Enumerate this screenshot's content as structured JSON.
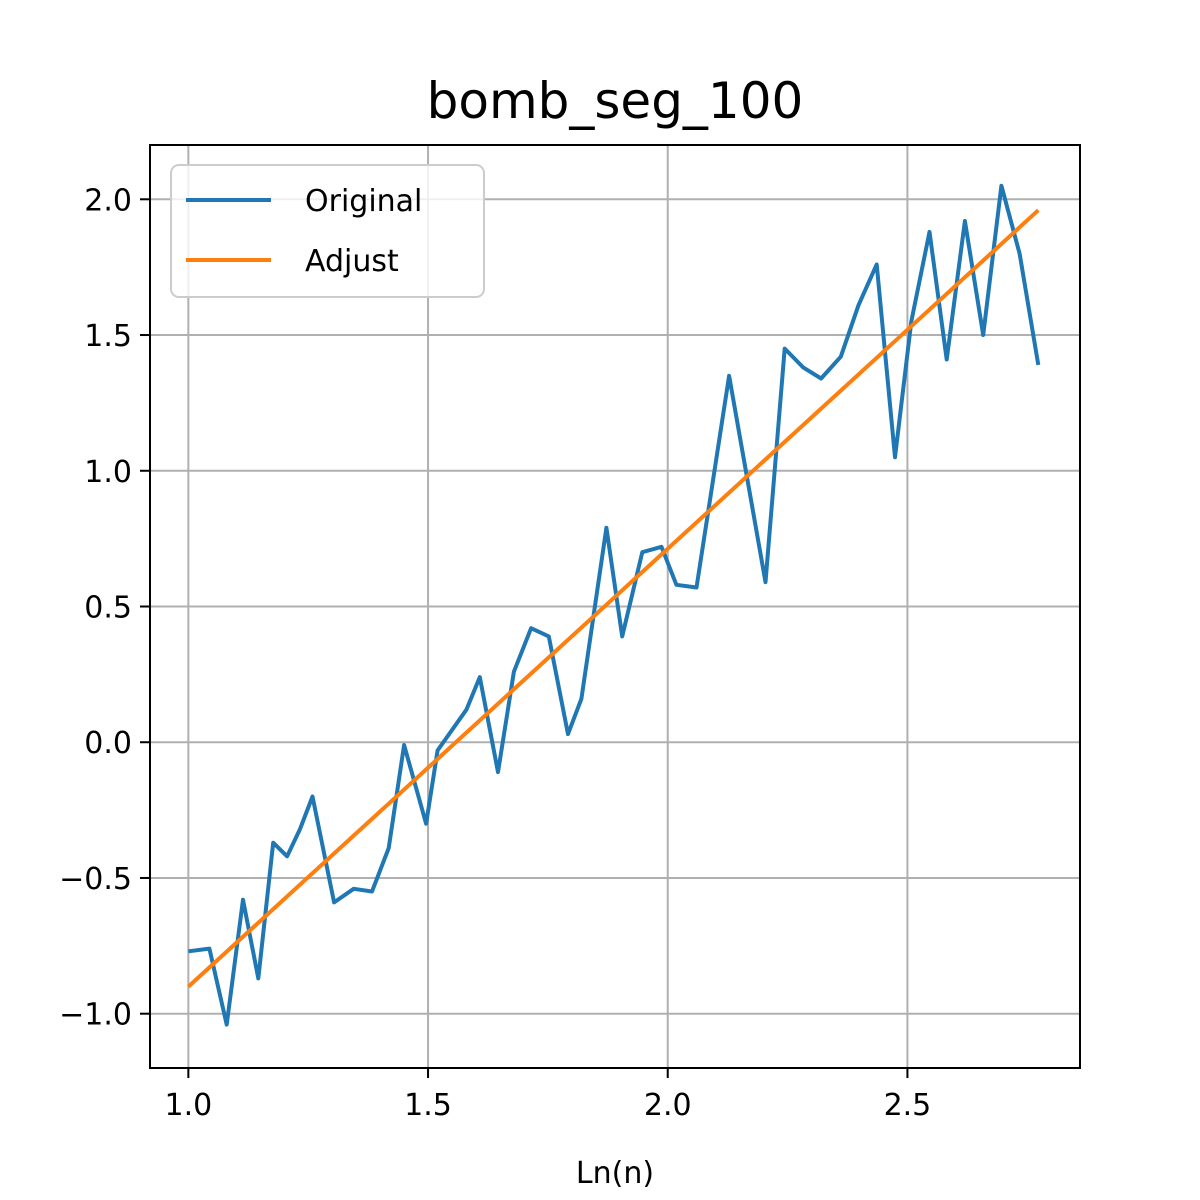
{
  "chart_data": {
    "type": "line",
    "title": "bomb_seg_100",
    "xlabel": "Ln(n)",
    "ylabel": "",
    "xlim": [
      0.92,
      2.86
    ],
    "ylim": [
      -1.2,
      2.2
    ],
    "xticks": [
      1.0,
      1.5,
      2.0,
      2.5
    ],
    "xtick_labels": [
      "1.0",
      "1.5",
      "2.0",
      "2.5"
    ],
    "yticks": [
      -1.0,
      -0.5,
      0.0,
      0.5,
      1.0,
      1.5,
      2.0
    ],
    "ytick_labels": [
      "−1.0",
      "−0.5",
      "0.0",
      "0.5",
      "1.0",
      "1.5",
      "2.0"
    ],
    "grid": true,
    "legend": "upper-left",
    "series": [
      {
        "name": "Original",
        "color": "#1f77b4",
        "points": [
          [
            1.0,
            -0.77
          ],
          [
            1.044,
            -0.76
          ],
          [
            1.08,
            -1.04
          ],
          [
            1.114,
            -0.58
          ],
          [
            1.146,
            -0.87
          ],
          [
            1.177,
            -0.37
          ],
          [
            1.206,
            -0.42
          ],
          [
            1.233,
            -0.32
          ],
          [
            1.259,
            -0.2
          ],
          [
            1.304,
            -0.59
          ],
          [
            1.345,
            -0.54
          ],
          [
            1.383,
            -0.55
          ],
          [
            1.418,
            -0.39
          ],
          [
            1.45,
            -0.01
          ],
          [
            1.496,
            -0.3
          ],
          [
            1.52,
            -0.03
          ],
          [
            1.58,
            0.12
          ],
          [
            1.608,
            0.24
          ],
          [
            1.646,
            -0.11
          ],
          [
            1.679,
            0.26
          ],
          [
            1.715,
            0.42
          ],
          [
            1.752,
            0.39
          ],
          [
            1.792,
            0.03
          ],
          [
            1.82,
            0.16
          ],
          [
            1.872,
            0.79
          ],
          [
            1.905,
            0.39
          ],
          [
            1.947,
            0.7
          ],
          [
            1.987,
            0.72
          ],
          [
            2.018,
            0.58
          ],
          [
            2.06,
            0.57
          ],
          [
            2.128,
            1.35
          ],
          [
            2.204,
            0.59
          ],
          [
            2.244,
            1.45
          ],
          [
            2.283,
            1.38
          ],
          [
            2.32,
            1.34
          ],
          [
            2.361,
            1.42
          ],
          [
            2.398,
            1.61
          ],
          [
            2.436,
            1.76
          ],
          [
            2.474,
            1.05
          ],
          [
            2.508,
            1.55
          ],
          [
            2.546,
            1.88
          ],
          [
            2.582,
            1.41
          ],
          [
            2.62,
            1.92
          ],
          [
            2.658,
            1.5
          ],
          [
            2.696,
            2.05
          ],
          [
            2.734,
            1.8
          ],
          [
            2.773,
            1.39
          ]
        ]
      },
      {
        "name": "Adjust",
        "color": "#ff7f0e",
        "points": [
          [
            1.0,
            -0.9
          ],
          [
            2.773,
            1.96
          ]
        ]
      }
    ]
  }
}
